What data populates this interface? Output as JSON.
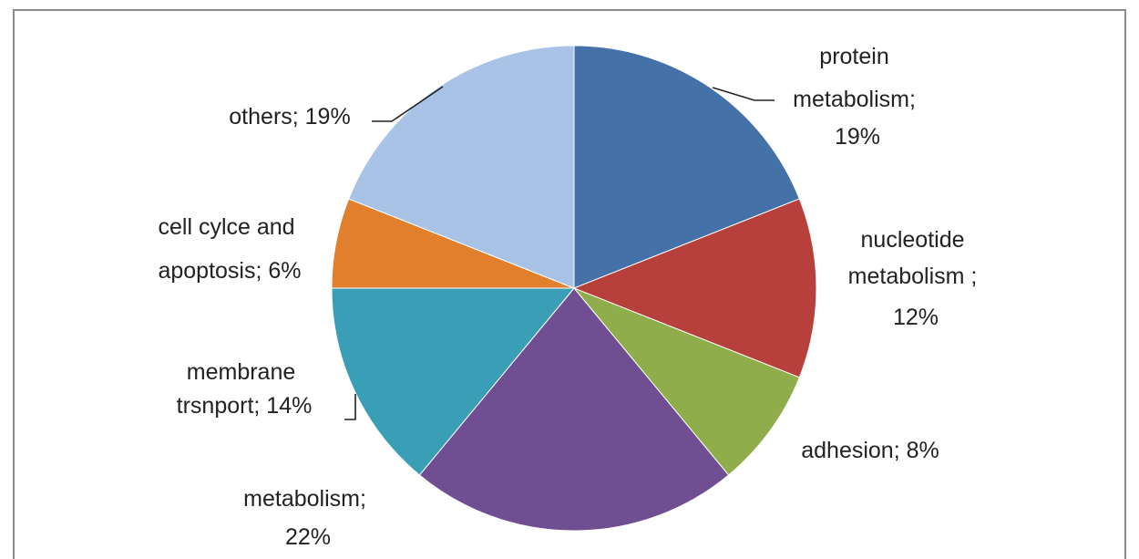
{
  "chart_data": {
    "type": "pie",
    "categories": [
      "protein metabolism",
      "nucleotide metabolism",
      "adhesion",
      "metabolism",
      "membrane trsnport",
      "cell cylce and apoptosis",
      "others"
    ],
    "values": [
      19,
      12,
      8,
      22,
      14,
      6,
      19
    ],
    "colors": [
      "#4472a8",
      "#b8403c",
      "#8fad4a",
      "#6f4f91",
      "#3a9fb6",
      "#e17f2c",
      "#a9c3e6"
    ],
    "start_angle": "12 o'clock",
    "direction": "clockwise",
    "legend": "none",
    "labels": [
      [
        "protein",
        "metabolism;",
        "19%"
      ],
      [
        "nucleotide",
        "metabolism ;",
        "12%"
      ],
      [
        "adhesion; 8%"
      ],
      [
        "metabolism;",
        "22%"
      ],
      [
        "membrane",
        "trsnport; 14%"
      ],
      [
        "cell cylce and",
        "apoptosis; 6%"
      ],
      [
        "others; 19%"
      ]
    ]
  }
}
